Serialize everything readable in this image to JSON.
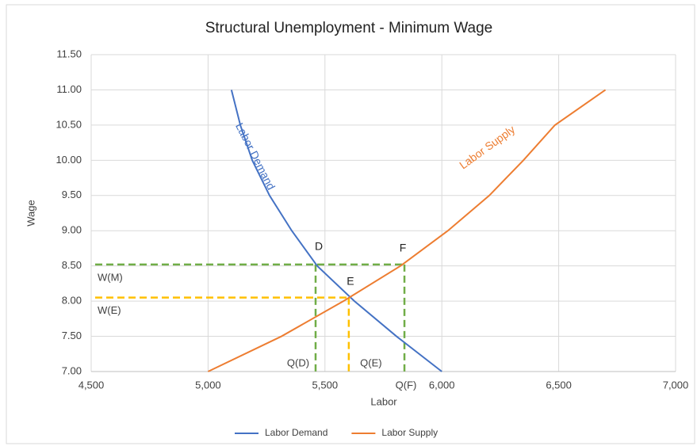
{
  "chart_data": {
    "type": "line",
    "title": "Structural Unemployment - Minimum Wage",
    "x_label": "Labor",
    "y_label": "Wage",
    "xlim": [
      4500,
      7000
    ],
    "ylim": [
      7.0,
      11.5
    ],
    "xticks": [
      {
        "value": 4500,
        "label": "4,500"
      },
      {
        "value": 5000,
        "label": "5,000"
      },
      {
        "value": 5500,
        "label": "5,500"
      },
      {
        "value": 6000,
        "label": "6,000"
      },
      {
        "value": 6500,
        "label": "6,500"
      },
      {
        "value": 7000,
        "label": "7,000"
      }
    ],
    "yticks": [
      {
        "value": 7.0,
        "label": "7.00"
      },
      {
        "value": 7.5,
        "label": "7.50"
      },
      {
        "value": 8.0,
        "label": "8.00"
      },
      {
        "value": 8.5,
        "label": "8.50"
      },
      {
        "value": 9.0,
        "label": "9.00"
      },
      {
        "value": 9.5,
        "label": "9.50"
      },
      {
        "value": 10.0,
        "label": "10.00"
      },
      {
        "value": 10.5,
        "label": "10.50"
      },
      {
        "value": 11.0,
        "label": "11.00"
      },
      {
        "value": 11.5,
        "label": "11.50"
      }
    ],
    "grid": true,
    "legend": "bottom",
    "series": [
      {
        "name": "Labor Demand",
        "color": "#4472c4",
        "x": [
          5100,
          5138,
          5189,
          5263,
          5358,
          5467,
          5626,
          5806,
          6000
        ],
        "values": [
          11.0,
          10.5,
          10.0,
          9.5,
          9.0,
          8.5,
          8.0,
          7.5,
          7.0
        ]
      },
      {
        "name": "Labor Supply",
        "color": "#ed7d31",
        "x": [
          5000,
          5314,
          5579,
          5823,
          6026,
          6203,
          6349,
          6484,
          6700
        ],
        "values": [
          7.0,
          7.5,
          8.0,
          8.5,
          9.0,
          9.5,
          10.0,
          10.5,
          11.0
        ]
      }
    ],
    "hlines": [
      {
        "label": "W(M)",
        "y": 8.52,
        "x_end": 5840,
        "color": "#70ad47"
      },
      {
        "label": "W(E)",
        "y": 8.05,
        "x_end": 5602,
        "color": "#ffc000"
      }
    ],
    "vlines": [
      {
        "label": "Q(D)",
        "x": 5460,
        "y_end": 8.52,
        "color": "#70ad47"
      },
      {
        "label": "Q(E)",
        "x": 5602,
        "y_end": 8.05,
        "color": "#ffc000"
      },
      {
        "label": "Q(F)",
        "x": 5840,
        "y_end": 8.52,
        "color": "#70ad47"
      }
    ],
    "points": [
      {
        "label": "D",
        "x": 5460,
        "y": 8.52
      },
      {
        "label": "E",
        "x": 5602,
        "y": 8.05
      },
      {
        "label": "F",
        "x": 5840,
        "y": 8.52
      }
    ]
  }
}
